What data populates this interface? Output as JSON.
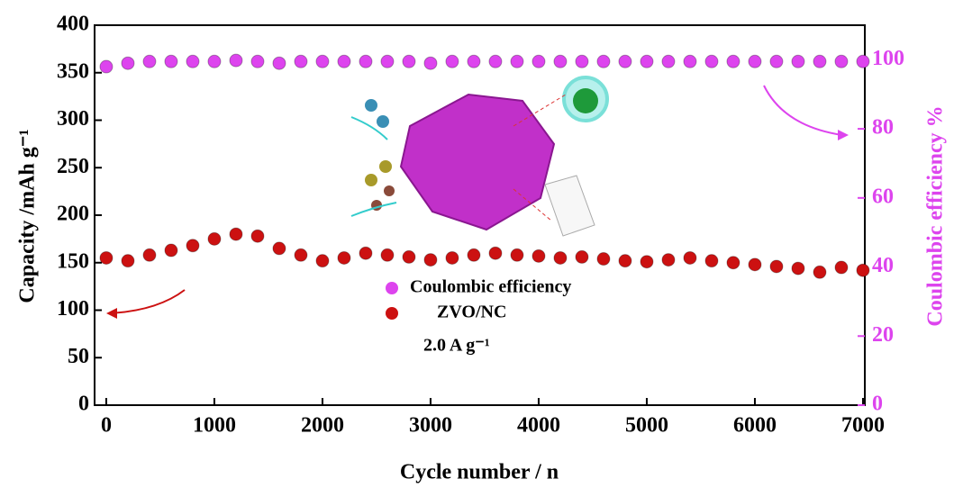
{
  "chart_data": {
    "type": "scatter",
    "x_label": "Cycle number / n",
    "y_label": "Capacity /mAh g⁻¹",
    "y2_label": "Coulombic efficiency %",
    "annotation": "2.0 A g⁻¹",
    "legend": "center",
    "x": [
      0,
      200,
      400,
      600,
      800,
      1000,
      1200,
      1400,
      1600,
      1800,
      2000,
      2200,
      2400,
      2600,
      2800,
      3000,
      3200,
      3400,
      3600,
      3800,
      4000,
      4200,
      4400,
      4600,
      4800,
      5000,
      5200,
      5400,
      5600,
      5800,
      6000,
      6200,
      6400,
      6600,
      6800,
      7000
    ],
    "series": [
      {
        "name": "Coulombic efficiency",
        "color": "#dd44ee",
        "axis": "y2",
        "values": [
          98,
          99,
          99.5,
          99.5,
          99.5,
          99.5,
          99.8,
          99.5,
          99,
          99.5,
          99.5,
          99.5,
          99.5,
          99.5,
          99.5,
          99,
          99.5,
          99.5,
          99.5,
          99.5,
          99.5,
          99.5,
          99.5,
          99.5,
          99.5,
          99.5,
          99.5,
          99.5,
          99.5,
          99.5,
          99.5,
          99.5,
          99.5,
          99.5,
          99.5,
          99.5
        ]
      },
      {
        "name": "ZVO/NC",
        "color": "#cc1111",
        "values": [
          155,
          152,
          158,
          163,
          168,
          175,
          180,
          178,
          165,
          158,
          152,
          155,
          160,
          158,
          156,
          153,
          155,
          158,
          160,
          158,
          157,
          155,
          156,
          154,
          152,
          151,
          153,
          155,
          152,
          150,
          148,
          146,
          144,
          140,
          145,
          142
        ]
      }
    ],
    "xlim": [
      -108,
      7017
    ],
    "xticks": [
      0,
      1000,
      2000,
      3000,
      4000,
      5000,
      6000,
      7000
    ],
    "ylim": [
      0,
      400
    ],
    "yticks": [
      0,
      50,
      100,
      150,
      200,
      250,
      300,
      350,
      400
    ],
    "y2lim": [
      0,
      110
    ],
    "y2ticks": [
      0,
      20,
      40,
      60,
      80,
      100
    ]
  }
}
